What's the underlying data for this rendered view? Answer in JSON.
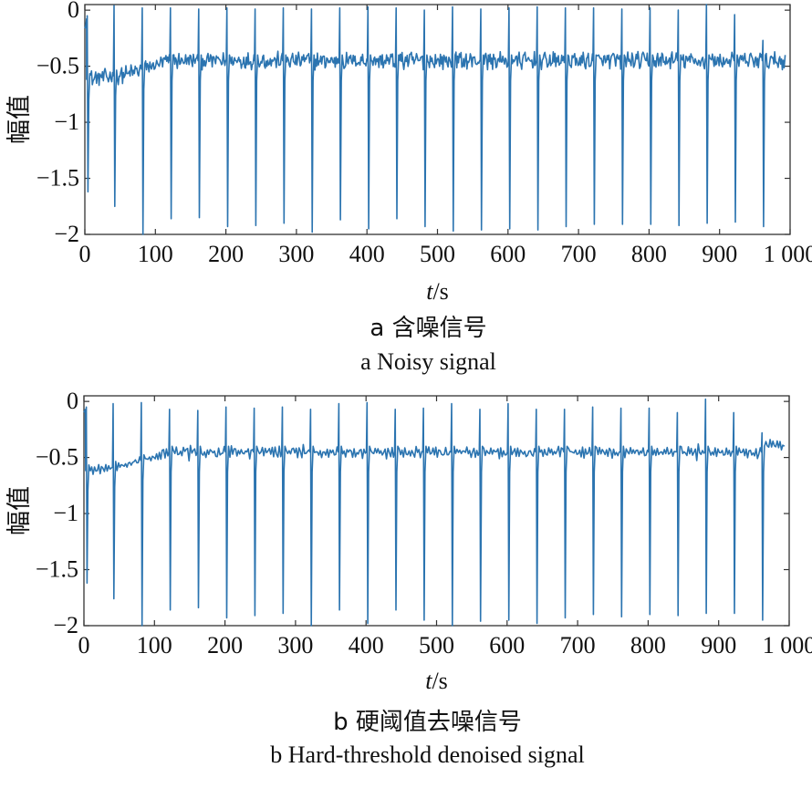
{
  "chart_data": [
    {
      "type": "line",
      "id": "a",
      "caption_cn": "a 含噪信号",
      "caption_en": "a Noisy signal",
      "ylabel": "幅值",
      "xlabel_italic": "t",
      "xlabel_unit": "/s",
      "xlim": [
        0,
        1000
      ],
      "ylim": [
        -2,
        0.05
      ],
      "xticks": [
        0,
        100,
        200,
        300,
        400,
        500,
        600,
        700,
        800,
        900,
        1000
      ],
      "xtick_labels": [
        "0",
        "100",
        "200",
        "300",
        "400",
        "500",
        "600",
        "700",
        "800",
        "900",
        "1 000"
      ],
      "yticks": [
        0,
        -0.5,
        -1,
        -1.5,
        -2
      ],
      "ytick_labels": [
        "0",
        "−0.5",
        "−1",
        "−1.5",
        "−2"
      ],
      "series": [
        {
          "color": "#2b74b0",
          "noisy": true,
          "baseline_start": -0.1,
          "baseline_early": -0.62,
          "baseline_settled": -0.45,
          "beats": [
            {
              "t": 4,
              "peak": -0.05,
              "trough": -1.62
            },
            {
              "t": 42,
              "peak": 0.04,
              "trough": -1.75
            },
            {
              "t": 82,
              "peak": 0.02,
              "trough": -2.0
            },
            {
              "t": 122,
              "peak": 0.02,
              "trough": -1.86
            },
            {
              "t": 162,
              "peak": 0.01,
              "trough": -1.85
            },
            {
              "t": 202,
              "peak": 0.02,
              "trough": -1.93
            },
            {
              "t": 242,
              "peak": 0.01,
              "trough": -1.92
            },
            {
              "t": 282,
              "peak": 0.02,
              "trough": -1.9
            },
            {
              "t": 322,
              "peak": 0.01,
              "trough": -1.98
            },
            {
              "t": 362,
              "peak": 0.02,
              "trough": -1.87
            },
            {
              "t": 402,
              "peak": 0.03,
              "trough": -1.95
            },
            {
              "t": 442,
              "peak": 0.02,
              "trough": -1.86
            },
            {
              "t": 482,
              "peak": 0.0,
              "trough": -1.93
            },
            {
              "t": 522,
              "peak": 0.03,
              "trough": -1.97
            },
            {
              "t": 562,
              "peak": 0.01,
              "trough": -1.96
            },
            {
              "t": 602,
              "peak": 0.02,
              "trough": -1.95
            },
            {
              "t": 642,
              "peak": 0.03,
              "trough": -1.96
            },
            {
              "t": 682,
              "peak": 0.02,
              "trough": -1.93
            },
            {
              "t": 722,
              "peak": 0.02,
              "trough": -1.91
            },
            {
              "t": 762,
              "peak": 0.01,
              "trough": -1.91
            },
            {
              "t": 802,
              "peak": 0.02,
              "trough": -1.91
            },
            {
              "t": 842,
              "peak": 0.0,
              "trough": -1.92
            },
            {
              "t": 882,
              "peak": 0.05,
              "trough": -1.9
            },
            {
              "t": 922,
              "peak": -0.04,
              "trough": -1.89
            },
            {
              "t": 962,
              "peak": -0.27,
              "trough": -1.93
            }
          ],
          "end_t": 993,
          "end_value": -0.4
        }
      ]
    },
    {
      "type": "line",
      "id": "b",
      "caption_cn": "b 硬阈值去噪信号",
      "caption_en": "b Hard-threshold denoised signal",
      "ylabel": "幅值",
      "xlabel_italic": "t",
      "xlabel_unit": "/s",
      "xlim": [
        0,
        1000
      ],
      "ylim": [
        -2,
        0.05
      ],
      "xticks": [
        0,
        100,
        200,
        300,
        400,
        500,
        600,
        700,
        800,
        900,
        1000
      ],
      "xtick_labels": [
        "0",
        "100",
        "200",
        "300",
        "400",
        "500",
        "600",
        "700",
        "800",
        "900",
        "1 000"
      ],
      "yticks": [
        0,
        -0.5,
        -1,
        -1.5,
        -2
      ],
      "ytick_labels": [
        "0",
        "−0.5",
        "−1",
        "−1.5",
        "−2"
      ],
      "series": [
        {
          "color": "#2b74b0",
          "noisy": false,
          "baseline_start": -0.1,
          "baseline_early": -0.62,
          "baseline_settled": -0.45,
          "beats": [
            {
              "t": 4,
              "peak": -0.05,
              "trough": -1.62
            },
            {
              "t": 42,
              "peak": -0.02,
              "trough": -1.76
            },
            {
              "t": 82,
              "peak": -0.01,
              "trough": -2.0
            },
            {
              "t": 122,
              "peak": -0.07,
              "trough": -1.86
            },
            {
              "t": 162,
              "peak": -0.08,
              "trough": -1.84
            },
            {
              "t": 202,
              "peak": -0.05,
              "trough": -1.93
            },
            {
              "t": 242,
              "peak": -0.06,
              "trough": -1.91
            },
            {
              "t": 282,
              "peak": -0.05,
              "trough": -1.89
            },
            {
              "t": 322,
              "peak": -0.07,
              "trough": -2.0
            },
            {
              "t": 362,
              "peak": -0.02,
              "trough": -1.86
            },
            {
              "t": 402,
              "peak": -0.01,
              "trough": -1.98
            },
            {
              "t": 442,
              "peak": -0.07,
              "trough": -1.86
            },
            {
              "t": 482,
              "peak": -0.06,
              "trough": -1.95
            },
            {
              "t": 522,
              "peak": -0.02,
              "trough": -2.0
            },
            {
              "t": 562,
              "peak": -0.07,
              "trough": -1.96
            },
            {
              "t": 602,
              "peak": -0.02,
              "trough": -1.95
            },
            {
              "t": 642,
              "peak": -0.07,
              "trough": -1.98
            },
            {
              "t": 682,
              "peak": -0.07,
              "trough": -1.93
            },
            {
              "t": 722,
              "peak": -0.05,
              "trough": -1.9
            },
            {
              "t": 762,
              "peak": -0.06,
              "trough": -1.92
            },
            {
              "t": 802,
              "peak": -0.06,
              "trough": -1.9
            },
            {
              "t": 842,
              "peak": -0.1,
              "trough": -1.91
            },
            {
              "t": 882,
              "peak": 0.02,
              "trough": -1.89
            },
            {
              "t": 922,
              "peak": -0.1,
              "trough": -1.89
            },
            {
              "t": 962,
              "peak": -0.28,
              "trough": -1.95
            }
          ],
          "end_t": 993,
          "end_value": -0.4
        }
      ]
    }
  ]
}
